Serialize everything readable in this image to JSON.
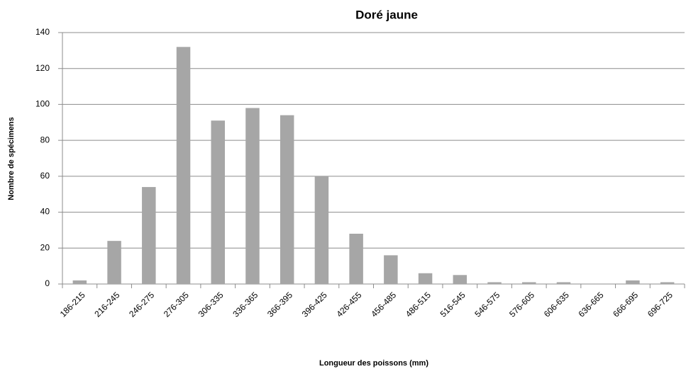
{
  "chart_data": {
    "type": "bar",
    "title": "Doré jaune",
    "x_label": "Longueur des poissons (mm)",
    "y_label": "Nombre de spécimens",
    "categories": [
      "186-215",
      "216-245",
      "246-275",
      "276-305",
      "306-335",
      "336-365",
      "366-395",
      "396-425",
      "426-455",
      "456-485",
      "486-515",
      "516-545",
      "546-575",
      "576-605",
      "606-635",
      "636-665",
      "666-695",
      "696-725"
    ],
    "values": [
      2,
      24,
      54,
      132,
      91,
      98,
      94,
      60,
      28,
      16,
      6,
      5,
      1,
      1,
      1,
      0,
      2,
      1
    ],
    "color": "#a6a6a6",
    "ylim": [
      0,
      140
    ],
    "yticks": [
      0,
      20,
      40,
      60,
      80,
      100,
      120,
      140
    ],
    "grid": true
  }
}
